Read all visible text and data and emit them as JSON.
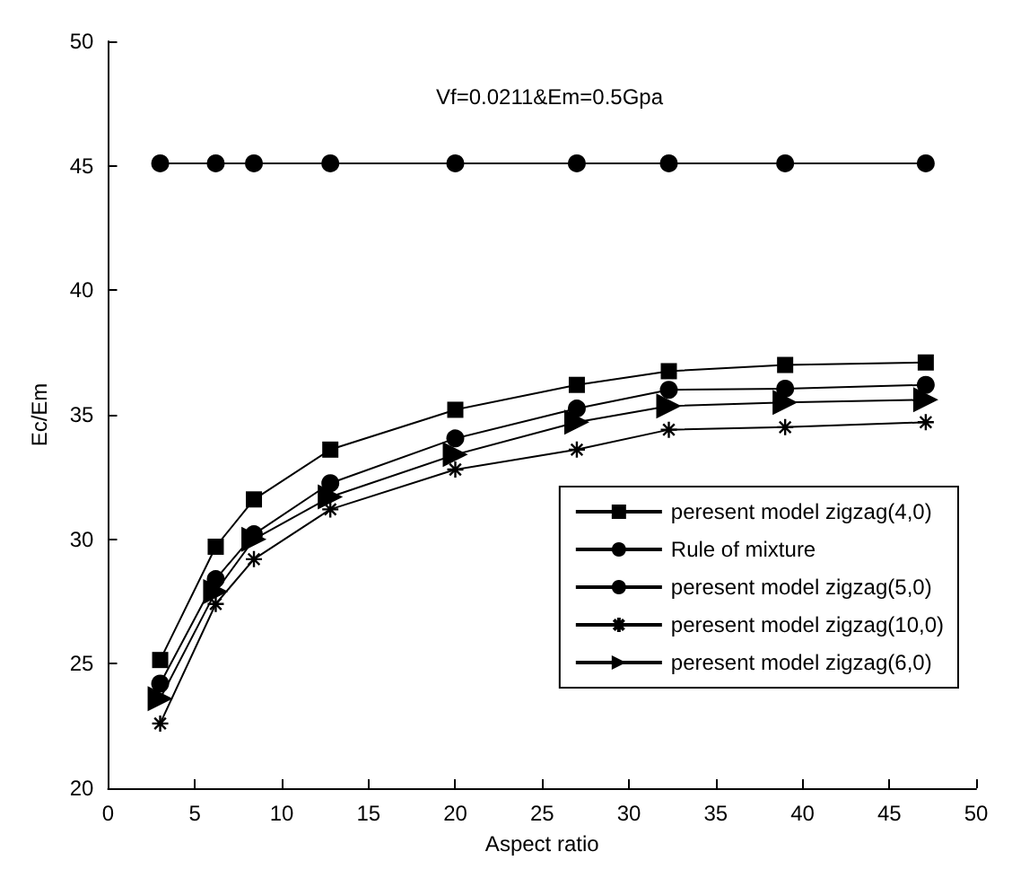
{
  "chart_data": {
    "type": "line",
    "xlabel": "Aspect ratio",
    "ylabel": "Ec/Em",
    "annotations": [
      "Vf=0.0211&Em=0.5Gpa"
    ],
    "x": [
      3,
      6.2,
      8.4,
      12.8,
      20,
      27,
      32.3,
      39,
      47.1
    ],
    "xlim": [
      0,
      50
    ],
    "xticks": [
      0,
      5,
      10,
      15,
      20,
      25,
      30,
      35,
      40,
      45,
      50
    ],
    "ylim": [
      20,
      50
    ],
    "yticks": [
      20,
      25,
      30,
      35,
      40,
      45,
      50
    ],
    "grid": false,
    "legend": "bottom right",
    "line_style": "solid",
    "series": [
      {
        "name": "peresent model zigzag(4,0)",
        "color": "#000000",
        "marker": "square",
        "values": [
          25.15,
          29.7,
          31.6,
          33.6,
          35.2,
          36.2,
          36.75,
          37.0,
          37.1
        ]
      },
      {
        "name": "Rule of mixture",
        "color": "#000000",
        "marker": "circle",
        "values": [
          45.1,
          45.1,
          45.1,
          45.1,
          45.1,
          45.1,
          45.1,
          45.1,
          45.1
        ]
      },
      {
        "name": "peresent model zigzag(5,0)",
        "color": "#000000",
        "marker": "circle",
        "values": [
          24.2,
          28.4,
          30.2,
          32.25,
          34.05,
          35.25,
          36.0,
          36.05,
          36.2
        ]
      },
      {
        "name": "peresent model zigzag(10,0)",
        "color": "#000000",
        "marker": "cross",
        "values": [
          22.6,
          27.4,
          29.2,
          31.2,
          32.8,
          33.6,
          34.4,
          34.5,
          34.7
        ]
      },
      {
        "name": "peresent model zigzag(6,0)",
        "color": "#000000",
        "marker": "triangle",
        "values": [
          23.6,
          27.9,
          30.0,
          31.7,
          33.4,
          34.7,
          35.35,
          35.5,
          35.6
        ]
      }
    ]
  }
}
